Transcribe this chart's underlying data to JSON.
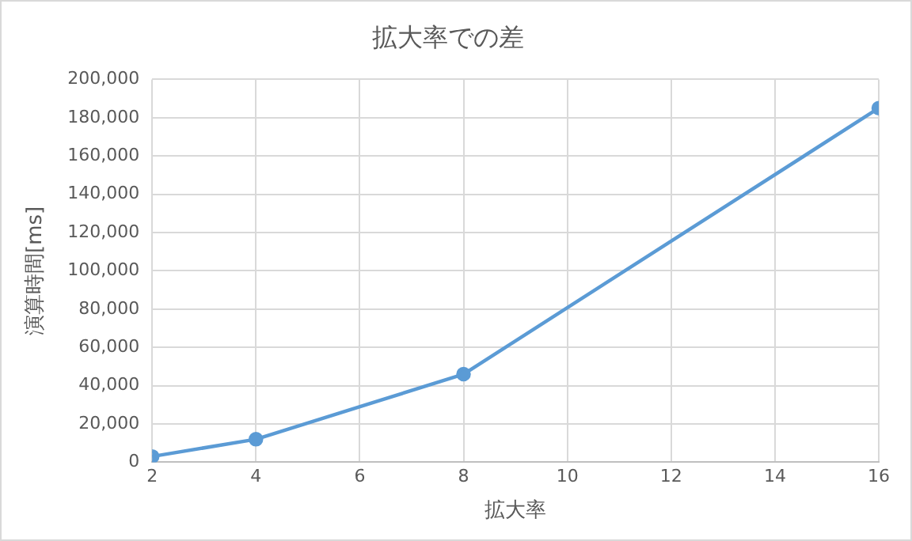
{
  "chart_data": {
    "type": "line",
    "title": "拡大率での差",
    "xlabel": "拡大率",
    "ylabel": "演算時間[ms]",
    "x": [
      2,
      4,
      8,
      16
    ],
    "series": [
      {
        "color": "#5b9bd5",
        "values": [
          3000,
          12000,
          46000,
          185000
        ]
      }
    ],
    "xlim": [
      2,
      16
    ],
    "xticks": [
      2,
      4,
      6,
      8,
      10,
      12,
      14,
      16
    ],
    "ylim": [
      0,
      200000
    ],
    "yticks": [
      {
        "value": 0,
        "label": "0"
      },
      {
        "value": 20000,
        "label": "20,000"
      },
      {
        "value": 40000,
        "label": "40,000"
      },
      {
        "value": 60000,
        "label": "60,000"
      },
      {
        "value": 80000,
        "label": "80,000"
      },
      {
        "value": 100000,
        "label": "100,000"
      },
      {
        "value": 120000,
        "label": "120,000"
      },
      {
        "value": 140000,
        "label": "140,000"
      },
      {
        "value": 160000,
        "label": "160,000"
      },
      {
        "value": 180000,
        "label": "180,000"
      },
      {
        "value": 200000,
        "label": "200,000"
      }
    ],
    "grid": true,
    "legend": false,
    "marker": "circle",
    "line_style": "solid"
  }
}
